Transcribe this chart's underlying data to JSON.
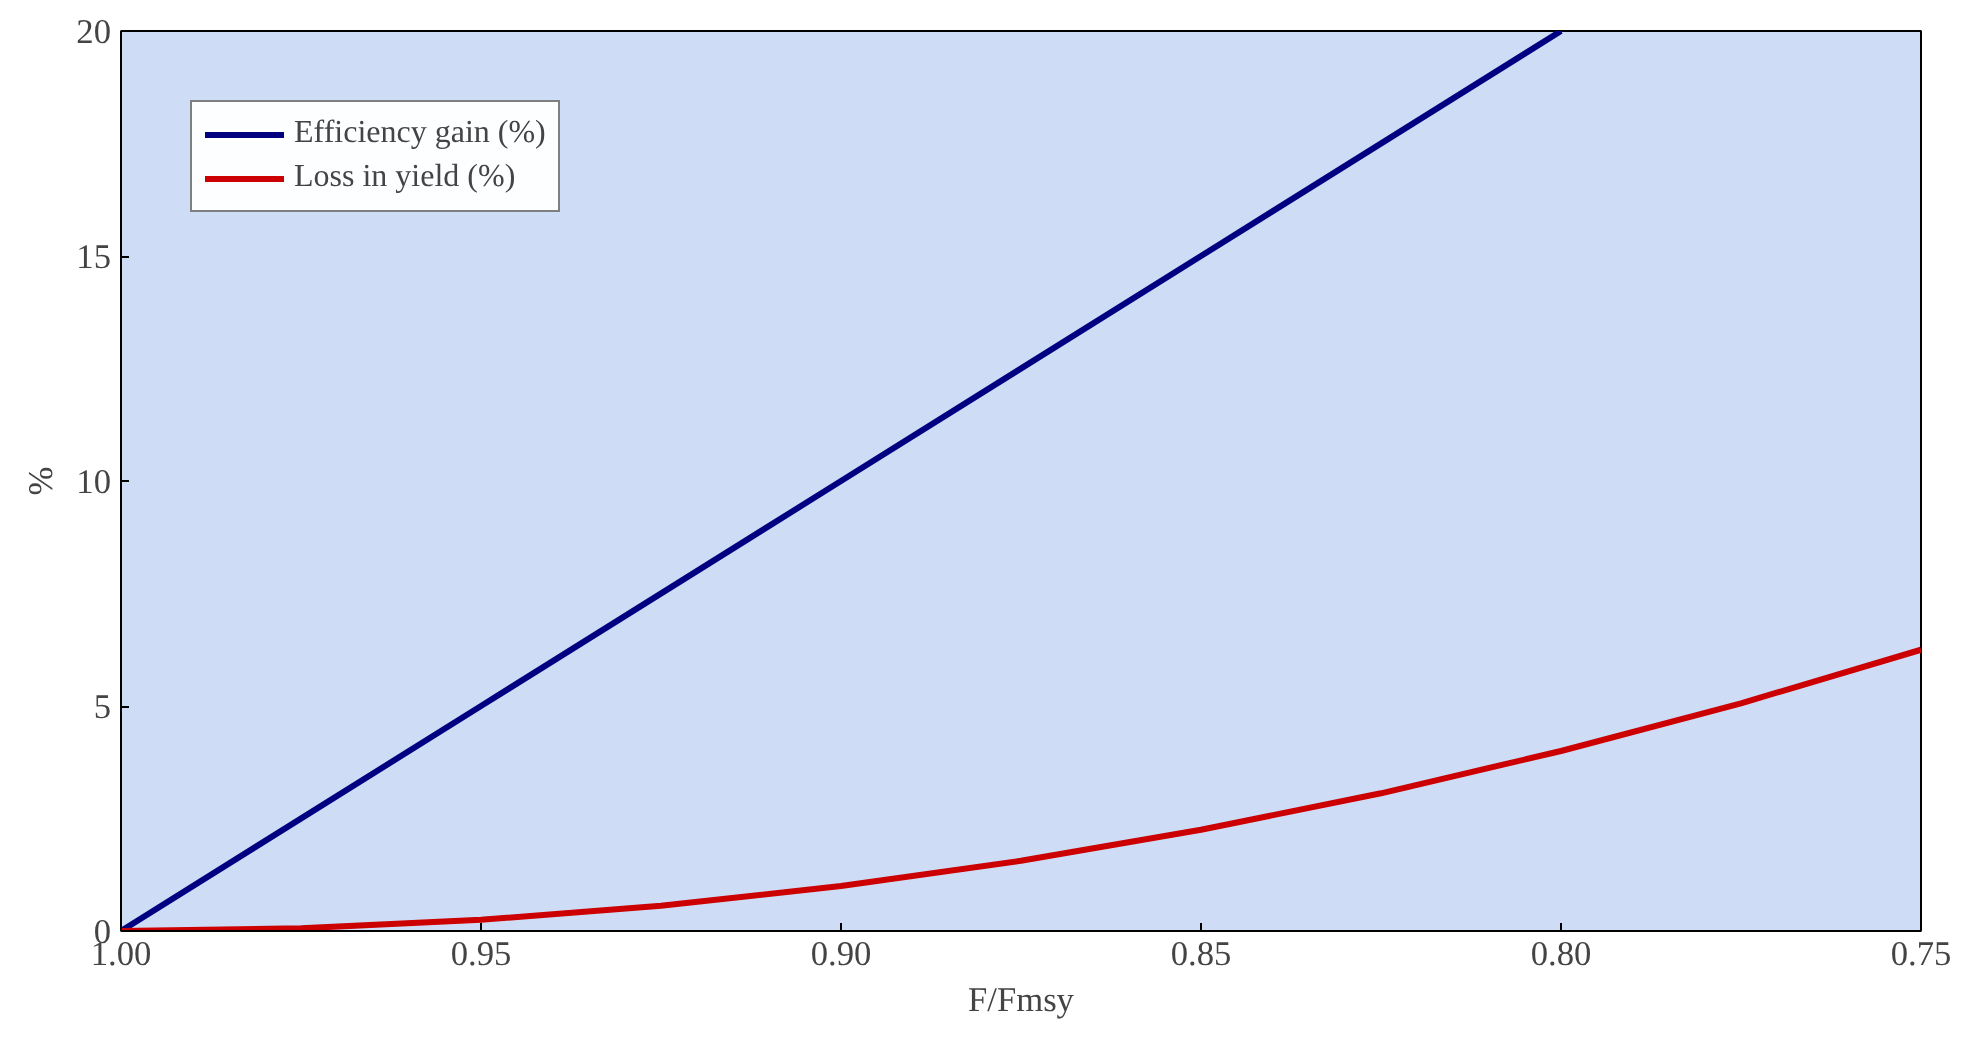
{
  "chart_data": {
    "type": "line",
    "xlabel": "F/Fmsy",
    "ylabel": "%",
    "xlim": [
      1.0,
      0.75
    ],
    "ylim": [
      0,
      20
    ],
    "xticks": [
      {
        "value": 1.0,
        "label": "1.00"
      },
      {
        "value": 0.95,
        "label": "0.95"
      },
      {
        "value": 0.9,
        "label": "0.90"
      },
      {
        "value": 0.85,
        "label": "0.85"
      },
      {
        "value": 0.8,
        "label": "0.80"
      },
      {
        "value": 0.75,
        "label": "0.75"
      }
    ],
    "yticks": [
      0,
      5,
      10,
      15,
      20
    ],
    "series": [
      {
        "name": "Efficiency gain (%)",
        "color": "#000080",
        "x": [
          1.0,
          0.95,
          0.9,
          0.85,
          0.8
        ],
        "values": [
          0,
          5,
          10,
          15,
          20
        ]
      },
      {
        "name": "Loss in yield (%)",
        "color": "#cc0000",
        "x": [
          1.0,
          0.975,
          0.95,
          0.925,
          0.9,
          0.875,
          0.85,
          0.825,
          0.8,
          0.775,
          0.75
        ],
        "values": [
          0,
          0.06,
          0.25,
          0.56,
          1.0,
          1.56,
          2.25,
          3.06,
          4.0,
          5.06,
          6.25
        ]
      }
    ],
    "legend": "top left",
    "grid": false,
    "line_style": "solid"
  }
}
